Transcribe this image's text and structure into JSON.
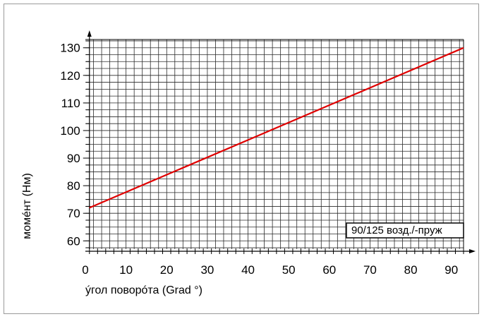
{
  "chart_data": {
    "type": "line",
    "title": "",
    "xlabel": "ýгол поворóта  (Grad °)",
    "ylabel": "момéнт (Нм)",
    "xlim": [
      0,
      93
    ],
    "ylim": [
      57,
      133
    ],
    "x_ticks": [
      0,
      10,
      20,
      30,
      40,
      50,
      60,
      70,
      80,
      90
    ],
    "x_tick_labels": [
      "0",
      "10",
      "20",
      "30",
      "40",
      "50",
      "60",
      "70",
      "80",
      "90"
    ],
    "y_ticks": [
      60,
      70,
      80,
      90,
      100,
      110,
      120,
      130
    ],
    "y_tick_labels": [
      "60",
      "70",
      "80",
      "90",
      "100",
      "110",
      "120",
      "130"
    ],
    "grid": true,
    "legend_position": "bottom-right",
    "series": [
      {
        "name": "90/125 возд./-пруж",
        "color": "#e00000",
        "x": [
          1,
          93
        ],
        "y": [
          72,
          130
        ]
      }
    ]
  }
}
